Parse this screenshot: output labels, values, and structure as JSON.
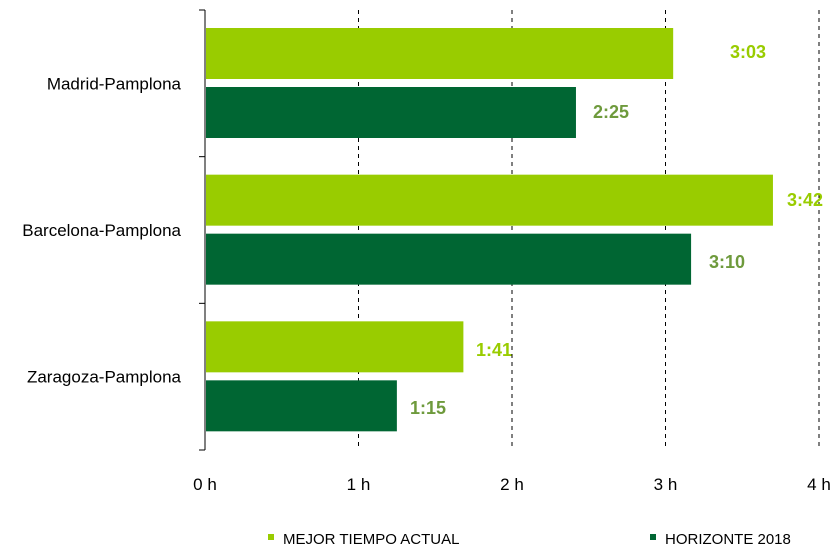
{
  "chart_data": {
    "type": "bar",
    "orientation": "horizontal",
    "categories": [
      "Madrid-Pamplona",
      "Barcelona-Pamplona",
      "Zaragoza-Pamplona"
    ],
    "series": [
      {
        "name": "MEJOR TIEMPO ACTUAL",
        "color": "#99CC00",
        "label_color": "#99CC00",
        "values": [
          3.05,
          3.7,
          1.6833
        ],
        "labels": [
          "3:03",
          "3:42",
          "1:41"
        ]
      },
      {
        "name": "HORIZONTE 2018",
        "color": "#006633",
        "label_color": "#6E9A3C",
        "values": [
          2.4167,
          3.1667,
          1.25
        ],
        "labels": [
          "2:25",
          "3:10",
          "1:15"
        ]
      }
    ],
    "x_ticks": [
      "0 h",
      "1 h",
      "2 h",
      "3 h",
      "4 h"
    ],
    "xlim": [
      0,
      4
    ],
    "grid": "vertical dashed",
    "legend_position": "bottom"
  }
}
